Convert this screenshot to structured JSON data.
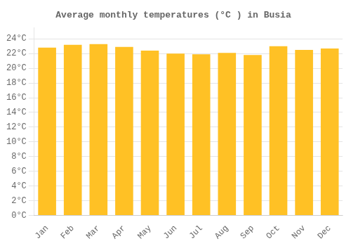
{
  "chart_data": {
    "type": "bar",
    "title": "Average monthly temperatures (°C ) in Busia",
    "categories": [
      "Jan",
      "Feb",
      "Mar",
      "Apr",
      "May",
      "Jun",
      "Jul",
      "Aug",
      "Sep",
      "Oct",
      "Nov",
      "Dec"
    ],
    "values": [
      22.8,
      23.2,
      23.3,
      22.9,
      22.4,
      22.0,
      21.9,
      22.1,
      21.8,
      23.0,
      22.5,
      22.7
    ],
    "color": "#FFC125",
    "ylim": [
      0,
      25.5
    ],
    "yticks": [
      {
        "value": 0,
        "label": "0°C"
      },
      {
        "value": 2,
        "label": "2°C"
      },
      {
        "value": 4,
        "label": "4°C"
      },
      {
        "value": 6,
        "label": "6°C"
      },
      {
        "value": 8,
        "label": "8°C"
      },
      {
        "value": 10,
        "label": "10°C"
      },
      {
        "value": 12,
        "label": "12°C"
      },
      {
        "value": 14,
        "label": "14°C"
      },
      {
        "value": 16,
        "label": "16°C"
      },
      {
        "value": 18,
        "label": "18°C"
      },
      {
        "value": 20,
        "label": "20°C"
      },
      {
        "value": 22,
        "label": "22°C"
      },
      {
        "value": 24,
        "label": "24°C"
      }
    ],
    "grid": true
  }
}
